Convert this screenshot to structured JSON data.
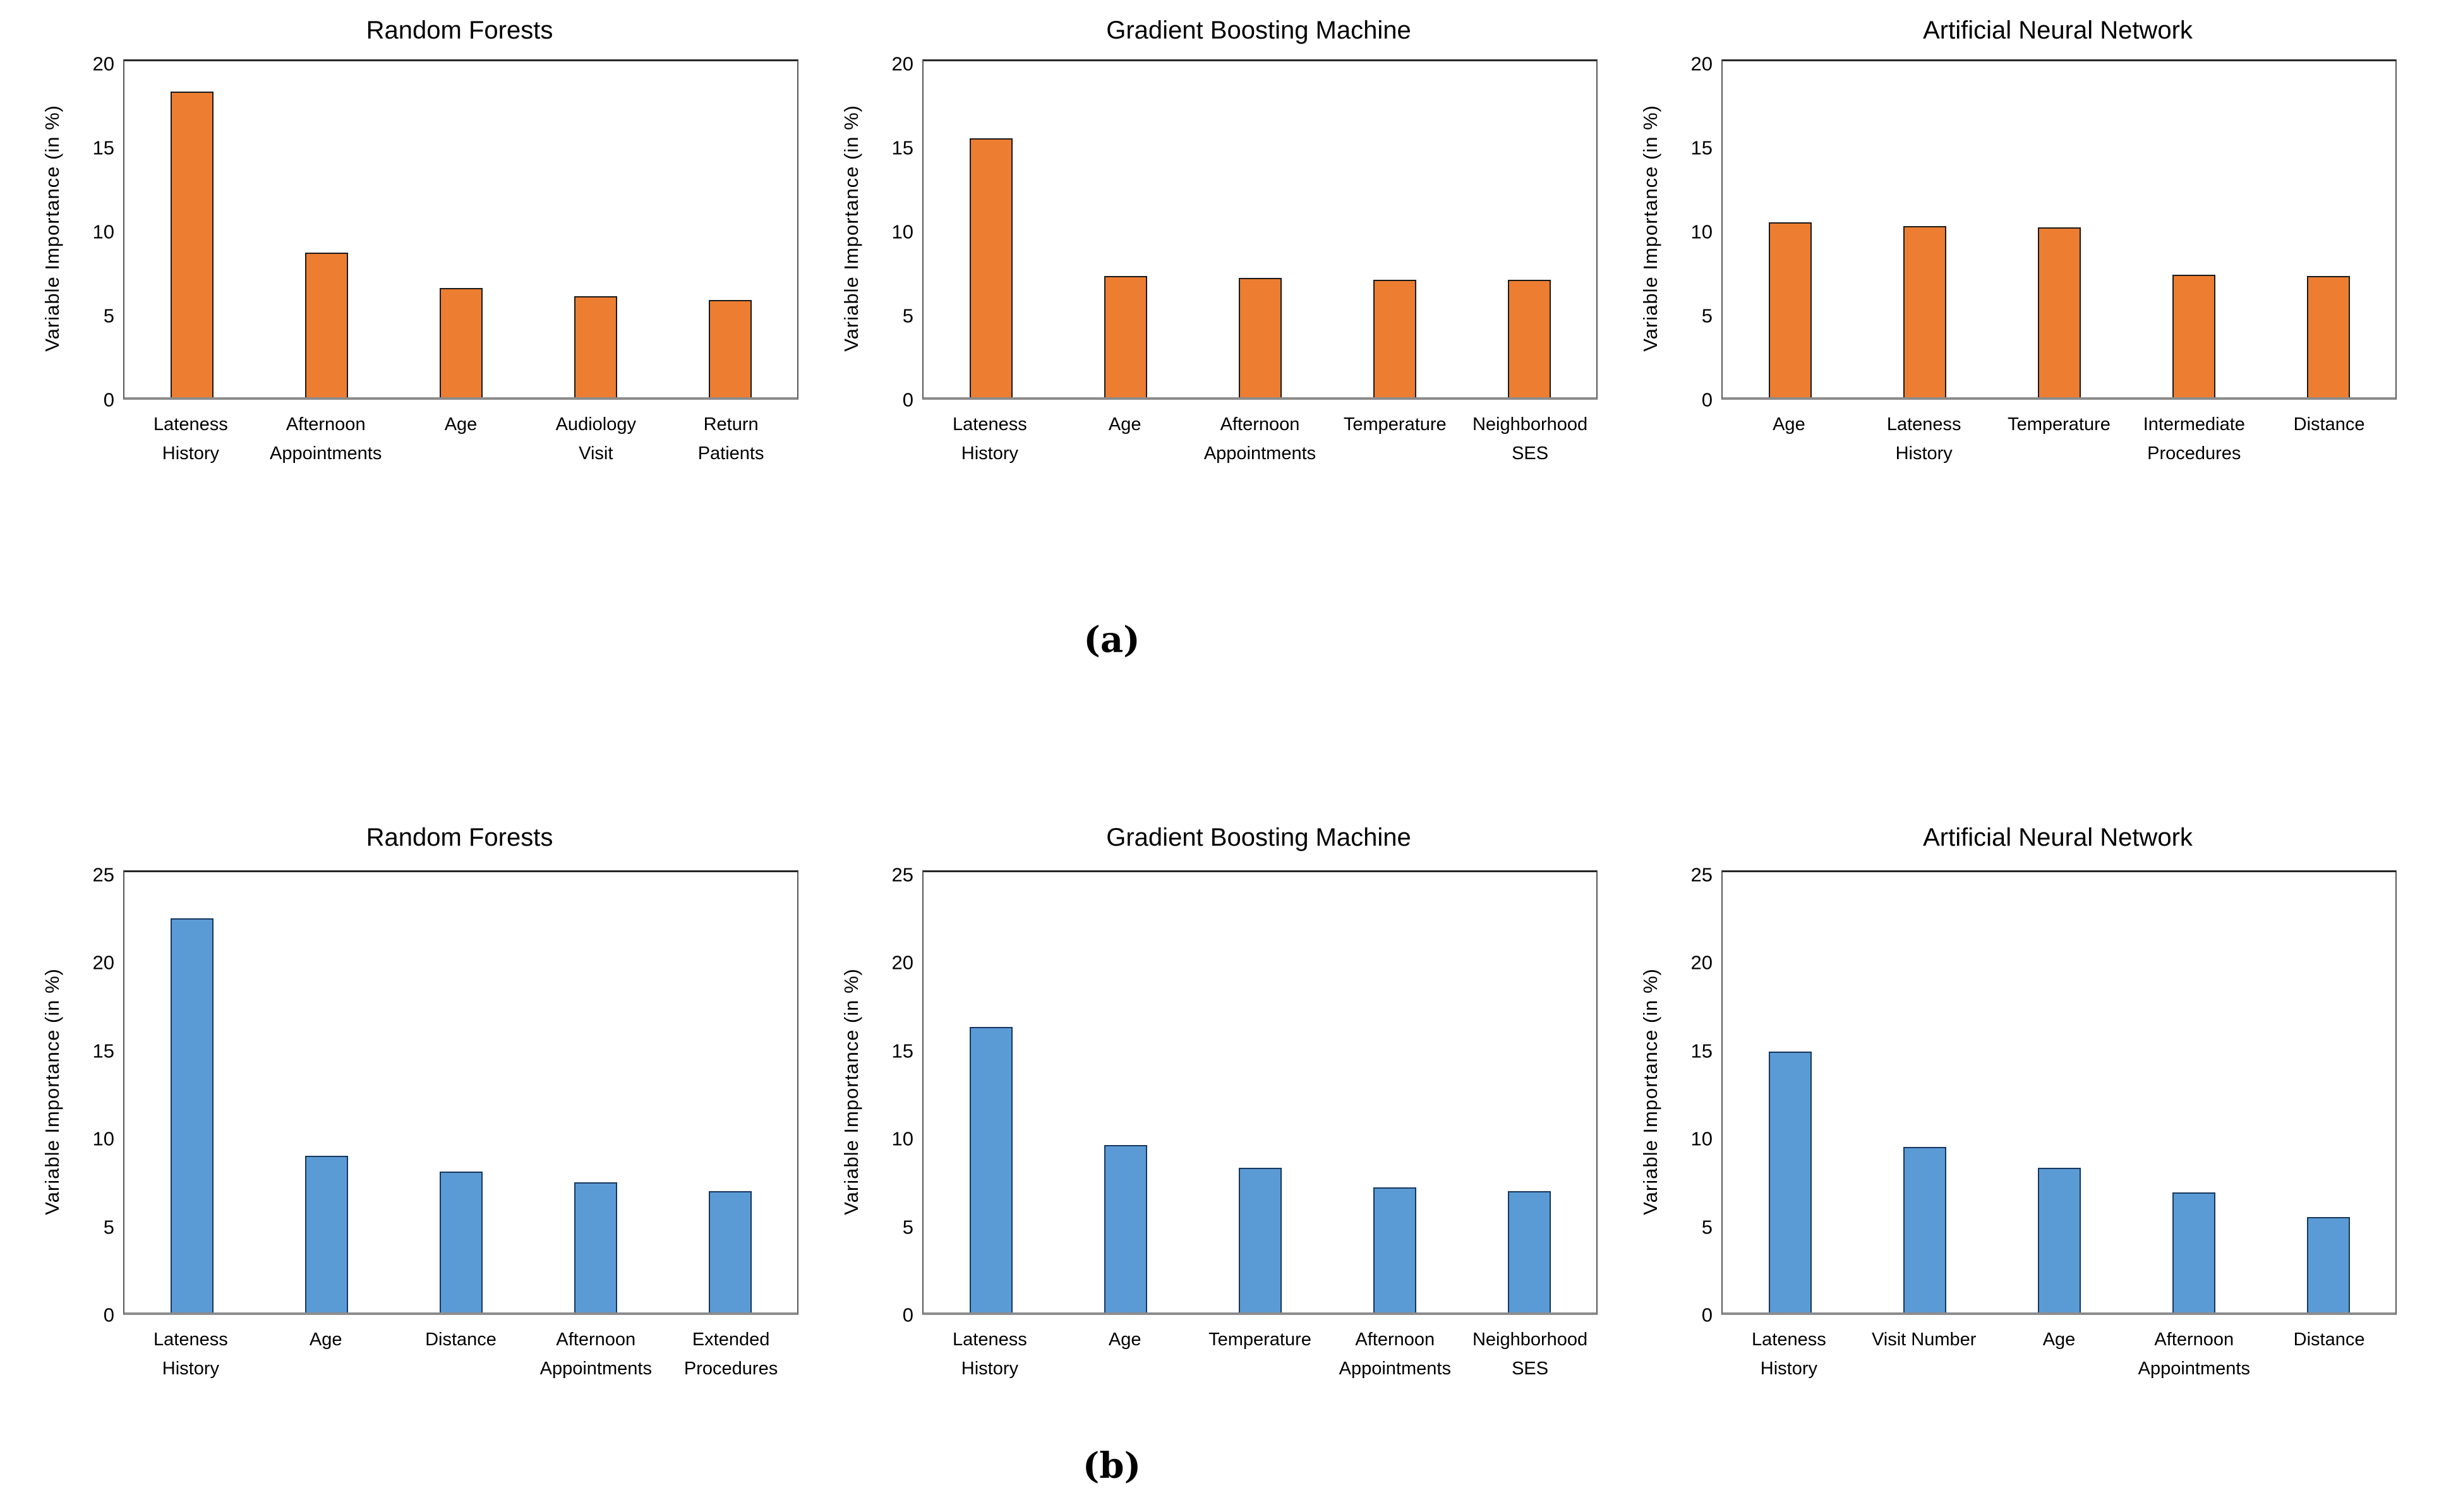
{
  "figure": {
    "subfigure_labels": {
      "a": "(a)",
      "b": "(b)"
    },
    "colors": {
      "orange_fill": "#ED7D31",
      "orange_border": "#1A1A1A",
      "blue_fill": "#5B9BD5",
      "blue_border": "#17375E",
      "frame": "#262626",
      "axis_bottom": "#8C8C8C"
    }
  },
  "chart_data": [
    {
      "id": "rf-a",
      "row": "a",
      "type": "bar",
      "title": "Random Forests",
      "ylabel": "Variable Importance (in %)",
      "ylim": [
        0,
        20
      ],
      "yticks": [
        0,
        5,
        10,
        15,
        20
      ],
      "grid": false,
      "legend": "none",
      "bar_fill": "#ED7D31",
      "bar_border": "#1A1A1A",
      "categories": [
        "Lateness History",
        "Afternoon Appointments",
        "Age",
        "Audiology Visit",
        "Return Patients"
      ],
      "category_lines": [
        [
          "Lateness",
          "History"
        ],
        [
          "Afternoon",
          "Appointments"
        ],
        [
          "Age"
        ],
        [
          "Audiology",
          "Visit"
        ],
        [
          "Return",
          "Patients"
        ]
      ],
      "values": [
        18.2,
        8.6,
        6.5,
        6.0,
        5.8
      ]
    },
    {
      "id": "gbm-a",
      "row": "a",
      "type": "bar",
      "title": "Gradient Boosting Machine",
      "ylabel": "Variable Importance (in %)",
      "ylim": [
        0,
        20
      ],
      "yticks": [
        0,
        5,
        10,
        15,
        20
      ],
      "grid": false,
      "legend": "none",
      "bar_fill": "#ED7D31",
      "bar_border": "#1A1A1A",
      "categories": [
        "Lateness History",
        "Age",
        "Afternoon Appointments",
        "Temperature",
        "Neighborhood SES"
      ],
      "category_lines": [
        [
          "Lateness",
          "History"
        ],
        [
          "Age"
        ],
        [
          "Afternoon",
          "Appointments"
        ],
        [
          "Temperature"
        ],
        [
          "Neighborhood",
          "SES"
        ]
      ],
      "values": [
        15.4,
        7.2,
        7.1,
        7.0,
        7.0
      ]
    },
    {
      "id": "ann-a",
      "row": "a",
      "type": "bar",
      "title": "Artificial Neural Network",
      "ylabel": "Variable Importance (in %)",
      "ylim": [
        0,
        20
      ],
      "yticks": [
        0,
        5,
        10,
        15,
        20
      ],
      "grid": false,
      "legend": "none",
      "bar_fill": "#ED7D31",
      "bar_border": "#1A1A1A",
      "categories": [
        "Age",
        "Lateness History",
        "Temperature",
        "Intermediate Procedures",
        "Distance"
      ],
      "category_lines": [
        [
          "Age"
        ],
        [
          "Lateness",
          "History"
        ],
        [
          "Temperature"
        ],
        [
          "Intermediate",
          "Procedures"
        ],
        [
          "Distance"
        ]
      ],
      "values": [
        10.4,
        10.2,
        10.1,
        7.3,
        7.2
      ]
    },
    {
      "id": "rf-b",
      "row": "b",
      "type": "bar",
      "title": "Random Forests",
      "ylabel": "Variable Importance (in %)",
      "ylim": [
        0,
        25
      ],
      "yticks": [
        0,
        5,
        10,
        15,
        20,
        25
      ],
      "grid": false,
      "legend": "none",
      "bar_fill": "#5B9BD5",
      "bar_border": "#17375E",
      "categories": [
        "Lateness History",
        "Age",
        "Distance",
        "Afternoon Appointments",
        "Extended Procedures"
      ],
      "category_lines": [
        [
          "Lateness",
          "History"
        ],
        [
          "Age"
        ],
        [
          "Distance"
        ],
        [
          "Afternoon",
          "Appointments"
        ],
        [
          "Extended",
          "Procedures"
        ]
      ],
      "values": [
        22.4,
        8.9,
        8.0,
        7.4,
        6.9
      ]
    },
    {
      "id": "gbm-b",
      "row": "b",
      "type": "bar",
      "title": "Gradient Boosting Machine",
      "ylabel": "Variable Importance (in %)",
      "ylim": [
        0,
        25
      ],
      "yticks": [
        0,
        5,
        10,
        15,
        20,
        25
      ],
      "grid": false,
      "legend": "none",
      "bar_fill": "#5B9BD5",
      "bar_border": "#17375E",
      "categories": [
        "Lateness History",
        "Age",
        "Temperature",
        "Afternoon Appointments",
        "Neighborhood SES"
      ],
      "category_lines": [
        [
          "Lateness History"
        ],
        [
          "Age"
        ],
        [
          "Temperature"
        ],
        [
          "Afternoon",
          "Appointments"
        ],
        [
          "Neighborhood",
          "SES"
        ]
      ],
      "values": [
        16.2,
        9.5,
        8.2,
        7.1,
        6.9
      ]
    },
    {
      "id": "ann-b",
      "row": "b",
      "type": "bar",
      "title": "Artificial Neural Network",
      "ylabel": "Variable Importance (in %)",
      "ylim": [
        0,
        25
      ],
      "yticks": [
        0,
        5,
        10,
        15,
        20,
        25
      ],
      "grid": false,
      "legend": "none",
      "bar_fill": "#5B9BD5",
      "bar_border": "#17375E",
      "categories": [
        "Lateness History",
        "Visit Number",
        "Age",
        "Afternoon Appointments",
        "Distance"
      ],
      "category_lines": [
        [
          "Lateness",
          "History"
        ],
        [
          "Visit Number"
        ],
        [
          "Age"
        ],
        [
          "Afternoon",
          "Appointments"
        ],
        [
          "Distance"
        ]
      ],
      "values": [
        14.8,
        9.4,
        8.2,
        6.8,
        5.4
      ]
    }
  ]
}
